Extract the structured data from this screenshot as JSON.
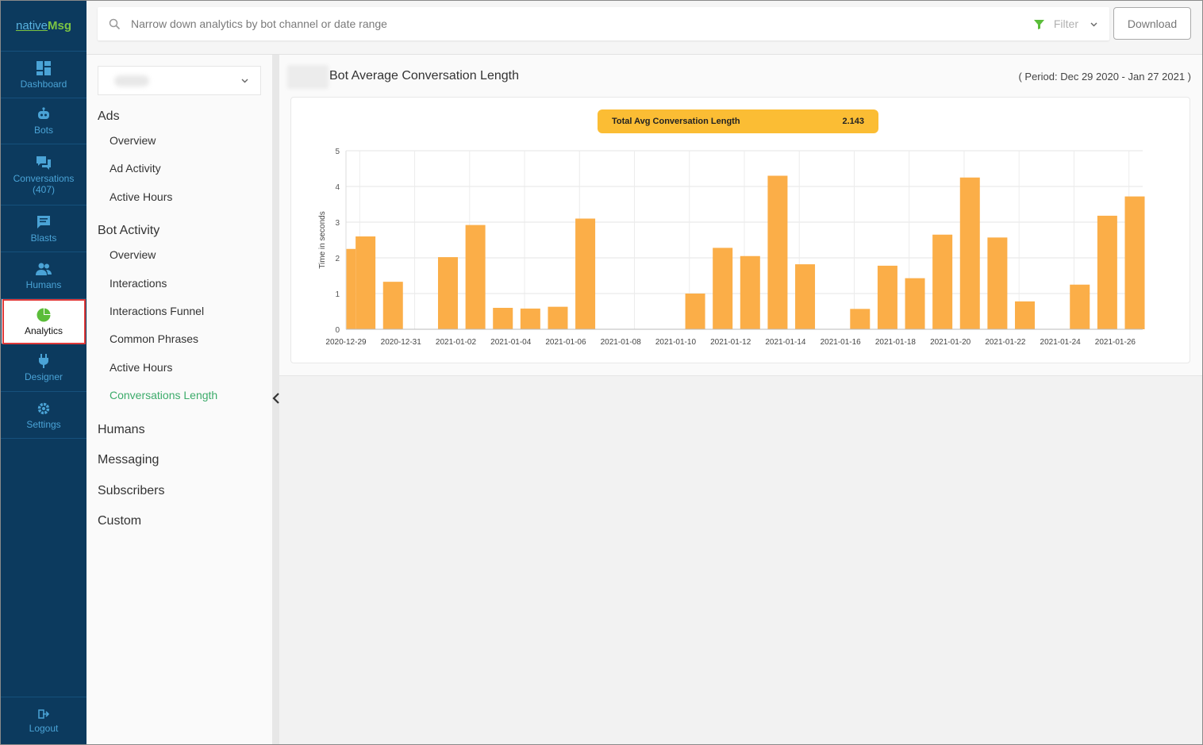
{
  "brand": {
    "logo_part1": "native",
    "logo_part2": "Msg"
  },
  "nav": {
    "items": [
      {
        "label": "Dashboard",
        "icon": "dashboard-icon"
      },
      {
        "label": "Bots",
        "icon": "robot-icon"
      },
      {
        "label": "Conversations",
        "count": "(407)",
        "icon": "chat-icon"
      },
      {
        "label": "Blasts",
        "icon": "message-icon"
      },
      {
        "label": "Humans",
        "icon": "users-icon"
      },
      {
        "label": "Analytics",
        "icon": "pie-chart-icon",
        "active": true
      },
      {
        "label": "Designer",
        "icon": "plug-icon"
      },
      {
        "label": "Settings",
        "icon": "gear-icon"
      }
    ],
    "logout": "Logout"
  },
  "search": {
    "placeholder": "Narrow down analytics by bot channel or date range"
  },
  "filter": {
    "label": "Filter"
  },
  "download_label": "Download",
  "submenu": {
    "ads": {
      "heading": "Ads",
      "items": [
        "Overview",
        "Ad Activity",
        "Active Hours"
      ]
    },
    "bot_activity": {
      "heading": "Bot Activity",
      "items": [
        "Overview",
        "Interactions",
        "Interactions Funnel",
        "Common Phrases",
        "Active Hours",
        "Conversations Length"
      ]
    },
    "humans": "Humans",
    "messaging": "Messaging",
    "subscribers": "Subscribers",
    "custom": "Custom"
  },
  "page": {
    "title": "Bot Average Conversation Length",
    "period": "( Period: Dec 29 2020 - Jan 27 2021 )"
  },
  "total": {
    "label": "Total Avg Conversation Length",
    "value": "2.143"
  },
  "colors": {
    "bar": "#fbae48",
    "active_menu": "#3cab6a",
    "rail": "#0c3a5e",
    "highlight": "#e03a3a"
  },
  "chart_data": {
    "type": "bar",
    "ylabel": "Time in seconds",
    "ylim": [
      0,
      5
    ],
    "yticks": [
      "0",
      "1",
      "2",
      "3",
      "4",
      "5"
    ],
    "grid": true,
    "categories": [
      "2020-12-29",
      "2020-12-30",
      "2020-12-31",
      "2021-01-01",
      "2021-01-02",
      "2021-01-03",
      "2021-01-04",
      "2021-01-05",
      "2021-01-06",
      "2021-01-07",
      "2021-01-08",
      "2021-01-09",
      "2021-01-10",
      "2021-01-11",
      "2021-01-12",
      "2021-01-13",
      "2021-01-14",
      "2021-01-15",
      "2021-01-16",
      "2021-01-17",
      "2021-01-18",
      "2021-01-19",
      "2021-01-20",
      "2021-01-21",
      "2021-01-22",
      "2021-01-23",
      "2021-01-24",
      "2021-01-25",
      "2021-01-26"
    ],
    "values": [
      2.6,
      1.33,
      0,
      2.02,
      2.92,
      0.6,
      0.58,
      0.63,
      3.1,
      0,
      0,
      0,
      1.0,
      2.28,
      2.05,
      4.3,
      1.82,
      0,
      0.57,
      1.78,
      1.43,
      2.65,
      4.25,
      2.57,
      0.78,
      0,
      1.25,
      3.18,
      3.72
    ],
    "lead_value": 2.25,
    "xtick_labels": [
      "2020-12-29",
      "2020-12-31",
      "2021-01-02",
      "2021-01-04",
      "2021-01-06",
      "2021-01-08",
      "2021-01-10",
      "2021-01-12",
      "2021-01-14",
      "2021-01-16",
      "2021-01-18",
      "2021-01-20",
      "2021-01-22",
      "2021-01-24",
      "2021-01-26"
    ]
  }
}
